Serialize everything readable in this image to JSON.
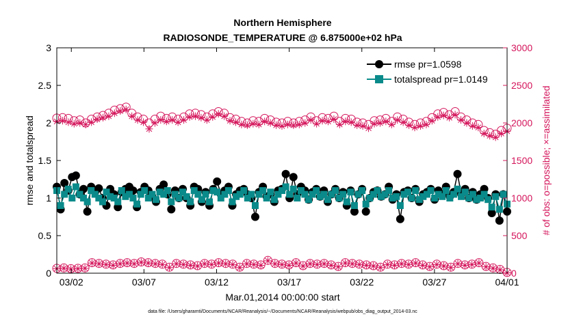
{
  "chart_data": {
    "type": "line",
    "title_line1": "Northern Hemisphere",
    "title_line2": "RADIOSONDE_TEMPERATURE @ 6.875000e+02 hPa",
    "xlabel": "Mar.01,2014 00:00:00 start",
    "ylabel_left": "rmse and totalspread",
    "ylabel_right": "# of obs: o=possible; ×=assimilated",
    "footnote": "data file: /Users/gharamti/Documents/NCAR/Reanalysis/~/Documents/NCAR/Reanalysis/webpub/obs_diag_output_2014-03.nc",
    "x_tick_labels": [
      "03/02",
      "03/07",
      "03/12",
      "03/17",
      "03/22",
      "03/27",
      "04/01"
    ],
    "x_tick_days": [
      1,
      6,
      11,
      16,
      21,
      26,
      31
    ],
    "xlim_days": [
      0,
      31
    ],
    "ylim_left": [
      0,
      3
    ],
    "yticks_left": [
      "0",
      "0.5",
      "1",
      "1.5",
      "2",
      "2.5",
      "3"
    ],
    "ylim_right": [
      0,
      3000
    ],
    "yticks_right": [
      "0",
      "500",
      "1000",
      "1500",
      "2000",
      "2500",
      "3000"
    ],
    "legend": {
      "placement": "top-right",
      "entries": [
        "rmse pr=1.0598",
        "totalspread pr=1.0149"
      ]
    },
    "colors": {
      "rmse": "#000000",
      "totalspread": "#0a8a8a",
      "obs": "#d4145a"
    },
    "rmse_values": [
      1.15,
      0.85,
      1.2,
      1.1,
      1.28,
      1.3,
      1.05,
      1.12,
      0.82,
      1.15,
      1.08,
      1.13,
      1.0,
      0.9,
      1.12,
      1.05,
      0.88,
      1.08,
      1.12,
      1.15,
      1.1,
      0.88,
      1.08,
      1.15,
      1.1,
      1.02,
      0.95,
      1.12,
      1.18,
      1.05,
      0.85,
      1.1,
      1.0,
      1.12,
      1.0,
      0.9,
      1.15,
      1.12,
      0.95,
      1.08,
      0.9,
      1.12,
      1.22,
      1.05,
      1.1,
      1.15,
      0.9,
      1.05,
      1.1,
      1.12,
      1.05,
      1.0,
      0.75,
      1.08,
      1.15,
      1.02,
      1.05,
      0.95,
      1.1,
      1.12,
      1.32,
      1.0,
      1.28,
      1.05,
      1.15,
      1.1,
      0.98,
      1.08,
      1.12,
      1.02,
      1.1,
      0.95,
      1.05,
      1.12,
      1.0,
      1.08,
      0.9,
      1.1,
      0.82,
      1.05,
      1.12,
      0.82,
      1.0,
      1.08,
      1.1,
      1.02,
      1.05,
      1.15,
      0.98,
      1.05,
      0.72,
      1.08,
      1.1,
      1.0,
      1.12,
      0.95,
      1.05,
      1.08,
      1.12,
      0.98,
      1.1,
      1.05,
      1.15,
      1.02,
      1.08,
      1.32,
      1.05,
      1.12,
      1.0,
      1.08,
      0.98,
      1.05,
      1.12,
      1.0,
      0.8,
      1.05,
      0.7,
      1.05,
      0.82
    ],
    "totalspread_values": [
      1.1,
      0.9,
      1.05,
      1.12,
      1.0,
      1.15,
      1.05,
      1.0,
      0.95,
      1.1,
      1.05,
      1.0,
      0.95,
      1.08,
      1.02,
      1.0,
      0.95,
      1.1,
      1.02,
      1.05,
      1.0,
      0.92,
      1.05,
      1.1,
      1.0,
      1.05,
      0.98,
      1.08,
      1.05,
      1.1,
      0.95,
      1.05,
      1.0,
      1.08,
      1.02,
      0.95,
      1.1,
      1.05,
      0.98,
      1.05,
      0.95,
      1.1,
      1.08,
      1.0,
      1.05,
      1.1,
      0.95,
      1.02,
      1.05,
      1.1,
      1.0,
      1.05,
      0.9,
      1.05,
      1.1,
      1.0,
      1.08,
      0.98,
      1.05,
      1.1,
      1.15,
      1.05,
      1.12,
      1.0,
      1.1,
      1.05,
      0.98,
      1.05,
      1.1,
      1.02,
      1.05,
      0.98,
      1.05,
      1.1,
      1.0,
      1.05,
      0.95,
      1.08,
      0.9,
      1.05,
      1.1,
      0.92,
      1.0,
      1.05,
      1.1,
      1.02,
      1.05,
      1.1,
      1.0,
      1.02,
      0.9,
      1.05,
      1.08,
      1.0,
      1.1,
      0.98,
      1.02,
      1.05,
      1.1,
      1.0,
      1.05,
      1.02,
      1.1,
      1.0,
      1.05,
      1.12,
      1.02,
      1.08,
      1.0,
      1.05,
      0.98,
      1.0,
      1.05,
      0.98,
      0.88,
      1.02,
      0.85,
      1.05,
      0.92
    ],
    "possible_obs": [
      2065,
      2070,
      2060,
      2030,
      2040,
      2000,
      2050,
      2080,
      2100,
      2130,
      2170,
      2190,
      2210,
      2130,
      2080,
      2050,
      2000,
      2050,
      2090,
      2060,
      2080,
      2050,
      2080,
      2120,
      2130,
      2110,
      2080,
      2120,
      2150,
      2130,
      2070,
      2050,
      2020,
      2000,
      2030,
      2020,
      2060,
      2040,
      2010,
      2000,
      2020,
      2000,
      2020,
      2040,
      2080,
      2030,
      2070,
      2060,
      2090,
      2020,
      2060,
      2050,
      2010,
      2000,
      1980,
      2030,
      2040,
      2060,
      2020,
      2080,
      2050,
      2010,
      1980,
      2000,
      2020,
      2070,
      2120,
      2140,
      2110,
      2150,
      2080,
      2040,
      2000,
      1980,
      1900,
      1870,
      1850,
      1900,
      1930
    ],
    "assimilated_obs": [
      2020,
      2030,
      2010,
      1990,
      2000,
      1980,
      2010,
      2050,
      2070,
      2090,
      2130,
      2160,
      2180,
      2090,
      2040,
      2010,
      1920,
      2000,
      2040,
      2020,
      2040,
      2010,
      2040,
      2080,
      2090,
      2070,
      2040,
      2080,
      2120,
      2090,
      2030,
      2010,
      1980,
      1970,
      1990,
      1980,
      2020,
      2000,
      1970,
      1960,
      1980,
      1970,
      1980,
      2000,
      2040,
      1990,
      2030,
      2020,
      2050,
      1980,
      2020,
      2010,
      1970,
      1960,
      1930,
      1990,
      2000,
      2020,
      1980,
      2040,
      2010,
      1970,
      1940,
      1960,
      1980,
      2030,
      2080,
      2100,
      2070,
      2110,
      2040,
      2000,
      1960,
      1940,
      1860,
      1830,
      1810,
      1860,
      1890
    ],
    "possible_obs_low": [
      65,
      70,
      60,
      65,
      70,
      140,
      130,
      120,
      110,
      130,
      140,
      130,
      150,
      140,
      130,
      120,
      80,
      130,
      120,
      110,
      100,
      130,
      120,
      140,
      130,
      120,
      80,
      130,
      120,
      110,
      170,
      130,
      120,
      110,
      140,
      100,
      130,
      120,
      130,
      110,
      90,
      140,
      130,
      120,
      110,
      100,
      80,
      120,
      110,
      130,
      120,
      140,
      110,
      90,
      120,
      100,
      80,
      130,
      110,
      120,
      140,
      90,
      70,
      50,
      10
    ],
    "assimilated_obs_low": [
      60,
      65,
      55,
      60,
      65,
      135,
      125,
      115,
      105,
      125,
      135,
      125,
      145,
      135,
      125,
      115,
      75,
      125,
      115,
      105,
      95,
      125,
      115,
      135,
      125,
      115,
      75,
      125,
      115,
      105,
      165,
      125,
      115,
      105,
      135,
      95,
      125,
      115,
      125,
      105,
      85,
      135,
      125,
      115,
      105,
      95,
      75,
      115,
      105,
      125,
      115,
      135,
      105,
      85,
      115,
      95,
      75,
      125,
      105,
      115,
      135,
      85,
      65,
      45,
      5
    ]
  }
}
